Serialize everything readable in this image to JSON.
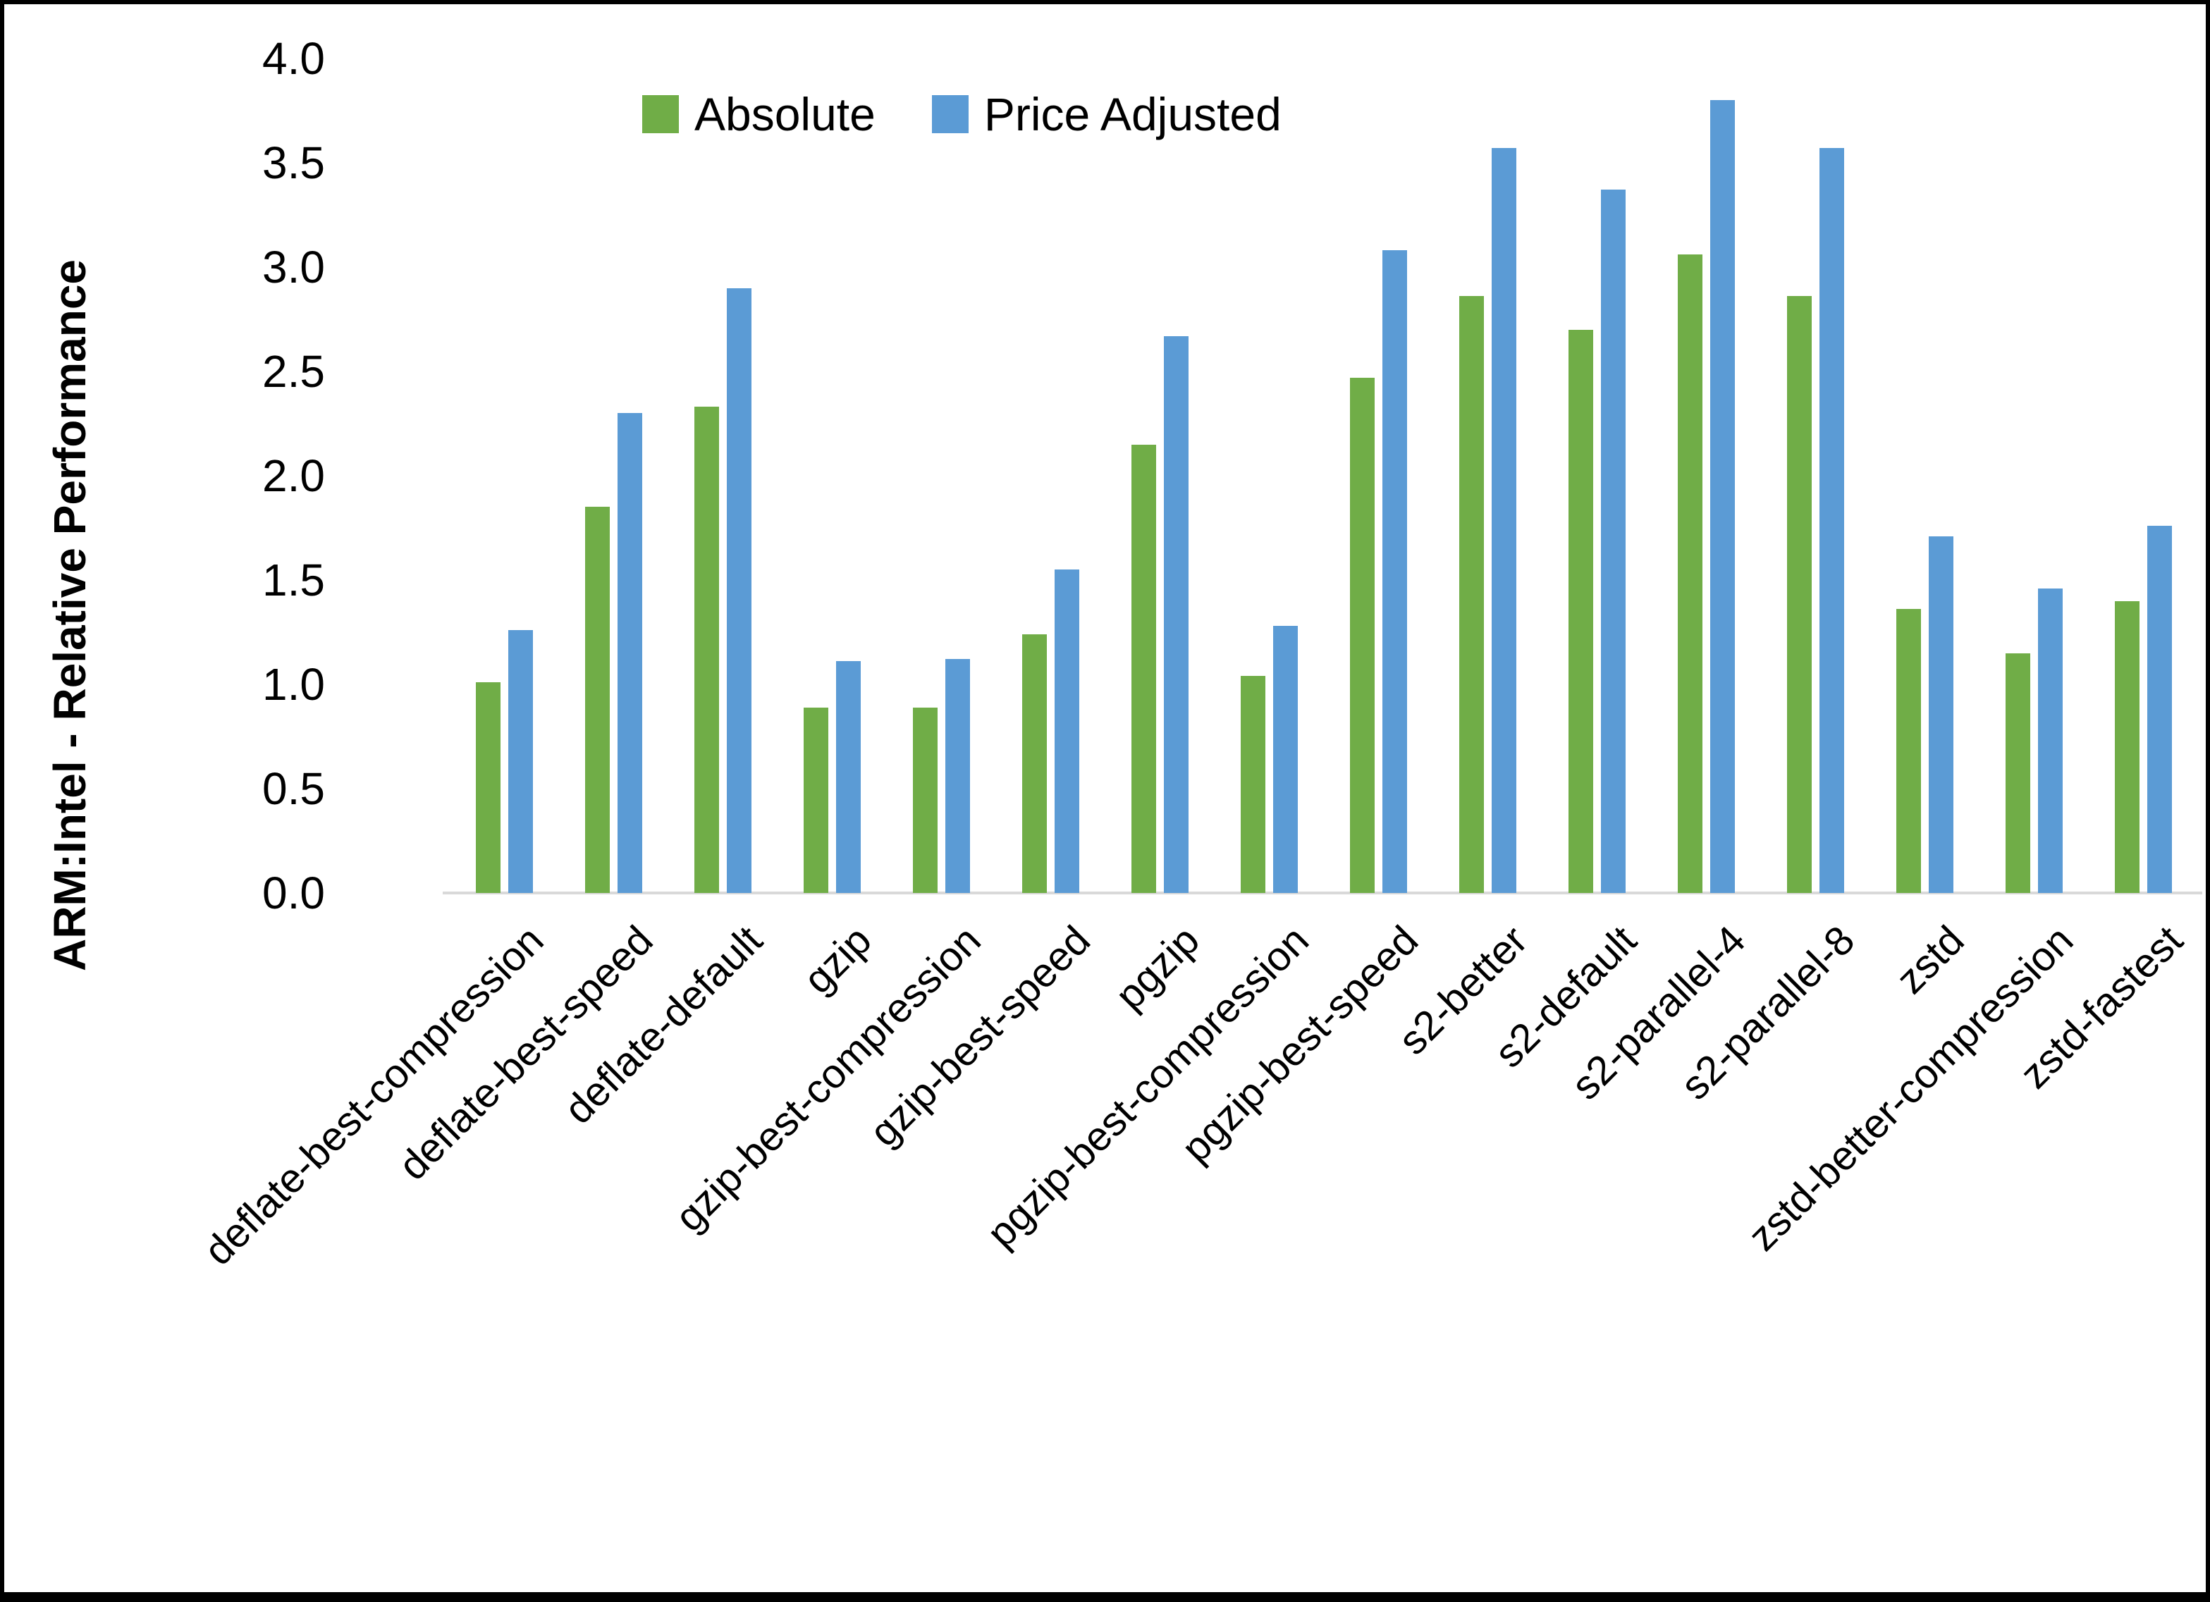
{
  "chart_data": {
    "type": "bar",
    "title": "",
    "xlabel": "",
    "ylabel": "ARM:Intel - Relative Performance",
    "ylim": [
      0.0,
      4.0
    ],
    "ytick_step": 0.5,
    "ytick_labels": [
      "4.0",
      "3.5",
      "3.0",
      "2.5",
      "2.0",
      "1.5",
      "1.0",
      "0.5",
      "0.0"
    ],
    "grid": false,
    "legend_position": "top-center-inside",
    "categories": [
      "deflate-best-compression",
      "deflate-best-speed",
      "deflate-default",
      "gzip",
      "gzip-best-compression",
      "gzip-best-speed",
      "pgzip",
      "pgzip-best-compression",
      "pgzip-best-speed",
      "s2-better",
      "s2-default",
      "s2-parallel-4",
      "s2-parallel-8",
      "zstd",
      "zstd-better-compression",
      "zstd-fastest"
    ],
    "series": [
      {
        "name": "Absolute",
        "color": "#70AD47",
        "values": [
          1.01,
          1.85,
          2.33,
          0.89,
          0.89,
          1.24,
          2.15,
          1.04,
          2.47,
          2.86,
          2.7,
          3.06,
          2.86,
          1.36,
          1.15,
          1.4
        ]
      },
      {
        "name": "Price Adjusted",
        "color": "#5B9BD5",
        "values": [
          1.26,
          2.3,
          2.9,
          1.11,
          1.12,
          1.55,
          2.67,
          1.28,
          3.08,
          3.57,
          3.37,
          3.8,
          3.57,
          1.71,
          1.46,
          1.76
        ]
      }
    ],
    "axis_line_color": "#D9D9D9",
    "text_color": "#000000",
    "background": "#FFFFFF",
    "border_color": "#000000"
  }
}
